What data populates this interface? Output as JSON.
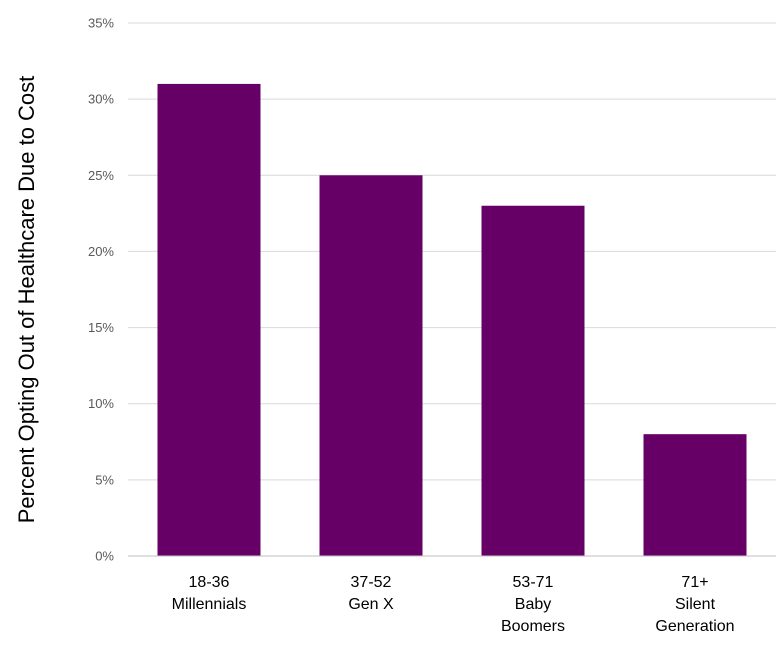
{
  "chart_data": {
    "type": "bar",
    "title": "",
    "xlabel": "",
    "ylabel": "Percent Opting Out of Healthcare Due to Cost",
    "ylim": [
      0,
      35
    ],
    "y_ticks": [
      0,
      5,
      10,
      15,
      20,
      25,
      30,
      35
    ],
    "y_tick_format": "percent",
    "grid": true,
    "legend": "none",
    "bar_color": "#660066",
    "categories": [
      [
        "18-36",
        "Millennials"
      ],
      [
        "37-52",
        "Gen X"
      ],
      [
        "53-71",
        "Baby",
        "Boomers"
      ],
      [
        "71+",
        "Silent",
        "Generation"
      ]
    ],
    "values": [
      31,
      25,
      23,
      8
    ]
  }
}
